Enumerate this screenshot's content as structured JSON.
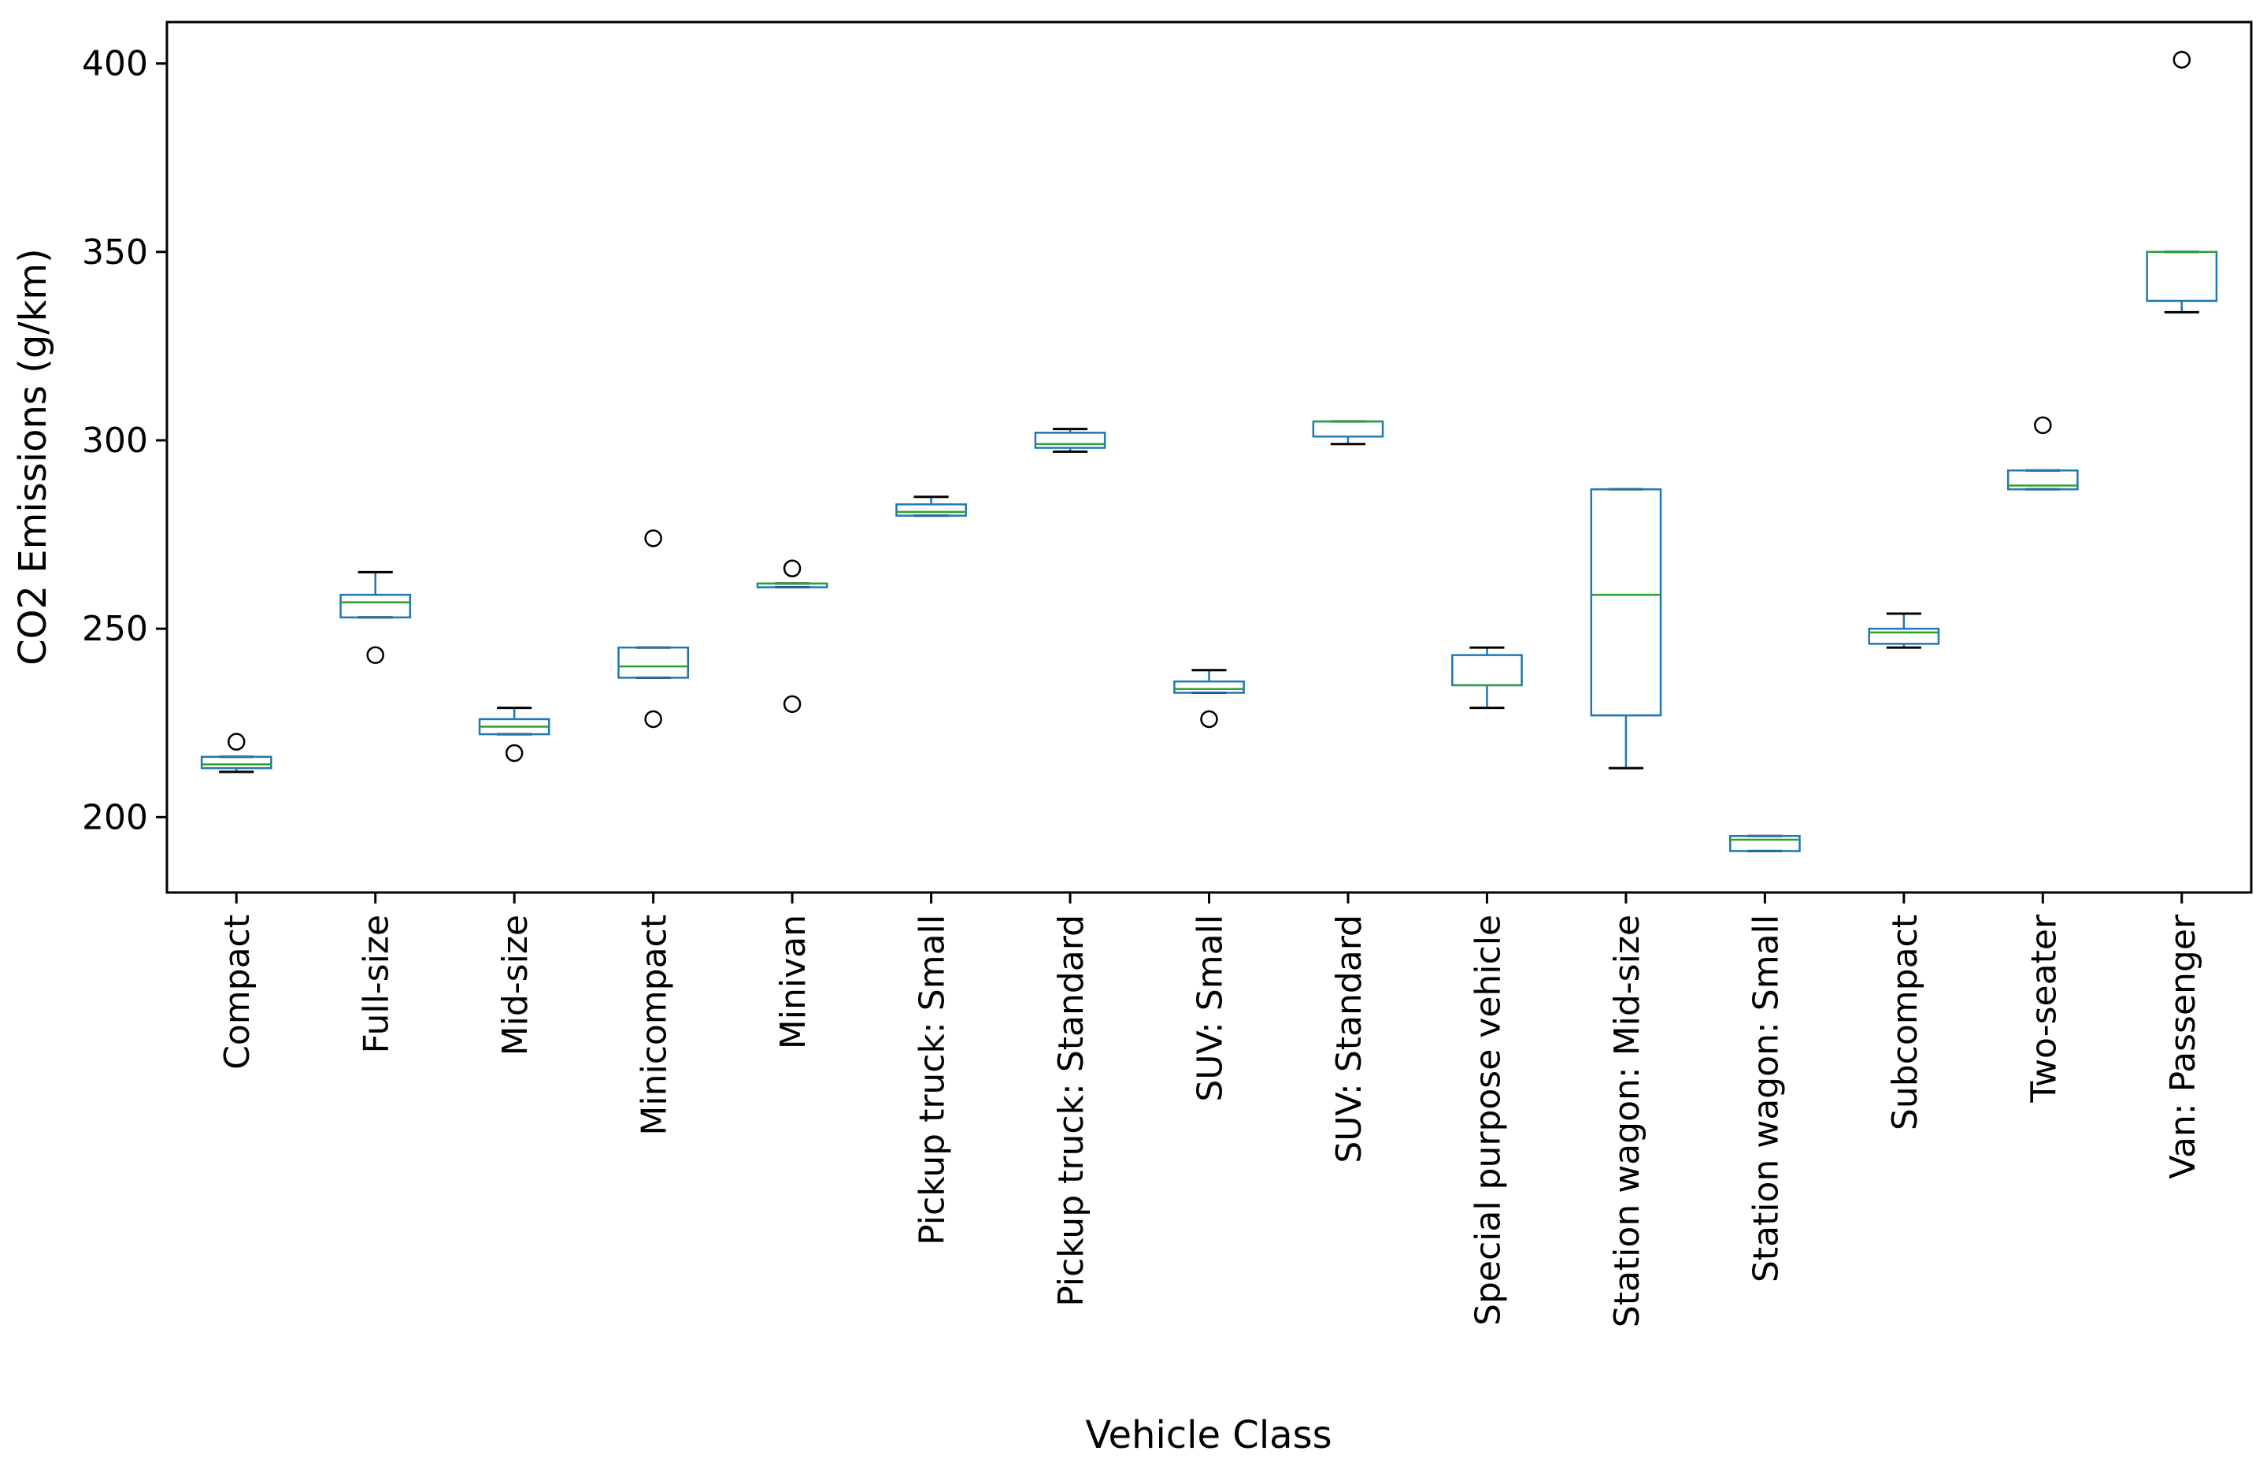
{
  "chart_data": {
    "type": "box",
    "title": "",
    "xlabel": "Vehicle Class",
    "ylabel": "CO2 Emissions (g/km)",
    "ylim": [
      180,
      411
    ],
    "yticks": [
      200,
      250,
      300,
      350,
      400
    ],
    "ytick_labels": [
      "200",
      "250",
      "300",
      "350",
      "400"
    ],
    "grid": false,
    "colors": {
      "box": "#1f77b4",
      "median": "#2ca02c",
      "whisker": "#1f77b4",
      "cap": "#000000",
      "flier": "#000000",
      "frame": "#000000"
    },
    "categories": [
      "Compact",
      "Full-size",
      "Mid-size",
      "Minicompact",
      "Minivan",
      "Pickup truck: Small",
      "Pickup truck: Standard",
      "SUV: Small",
      "SUV: Standard",
      "Special purpose vehicle",
      "Station wagon: Mid-size",
      "Station wagon: Small",
      "Subcompact",
      "Two-seater",
      "Van: Passenger"
    ],
    "boxes": [
      {
        "q1": 213,
        "median": 214,
        "q3": 216,
        "whislo": 212,
        "whishi": 216,
        "fliers": [
          220
        ]
      },
      {
        "q1": 253,
        "median": 257,
        "q3": 259,
        "whislo": 253,
        "whishi": 265,
        "fliers": [
          243
        ]
      },
      {
        "q1": 222,
        "median": 224,
        "q3": 226,
        "whislo": 222,
        "whishi": 229,
        "fliers": [
          217
        ]
      },
      {
        "q1": 237,
        "median": 240,
        "q3": 245,
        "whislo": 237,
        "whishi": 245,
        "fliers": [
          226,
          274
        ]
      },
      {
        "q1": 261,
        "median": 262,
        "q3": 262,
        "whislo": 261,
        "whishi": 262,
        "fliers": [
          230,
          266
        ]
      },
      {
        "q1": 280,
        "median": 281,
        "q3": 283,
        "whislo": 280,
        "whishi": 285,
        "fliers": []
      },
      {
        "q1": 298,
        "median": 299,
        "q3": 302,
        "whislo": 297,
        "whishi": 303,
        "fliers": []
      },
      {
        "q1": 233,
        "median": 234,
        "q3": 236,
        "whislo": 233,
        "whishi": 239,
        "fliers": [
          226
        ]
      },
      {
        "q1": 301,
        "median": 305,
        "q3": 305,
        "whislo": 299,
        "whishi": 305,
        "fliers": []
      },
      {
        "q1": 235,
        "median": 235,
        "q3": 243,
        "whislo": 229,
        "whishi": 245,
        "fliers": []
      },
      {
        "q1": 227,
        "median": 259,
        "q3": 287,
        "whislo": 213,
        "whishi": 287,
        "fliers": []
      },
      {
        "q1": 191,
        "median": 194,
        "q3": 195,
        "whislo": 191,
        "whishi": 195,
        "fliers": []
      },
      {
        "q1": 246,
        "median": 249,
        "q3": 250,
        "whislo": 245,
        "whishi": 254,
        "fliers": []
      },
      {
        "q1": 287,
        "median": 288,
        "q3": 292,
        "whislo": 287,
        "whishi": 292,
        "fliers": [
          304
        ]
      },
      {
        "q1": 337,
        "median": 350,
        "q3": 350,
        "whislo": 334,
        "whishi": 350,
        "fliers": [
          401
        ]
      }
    ]
  }
}
